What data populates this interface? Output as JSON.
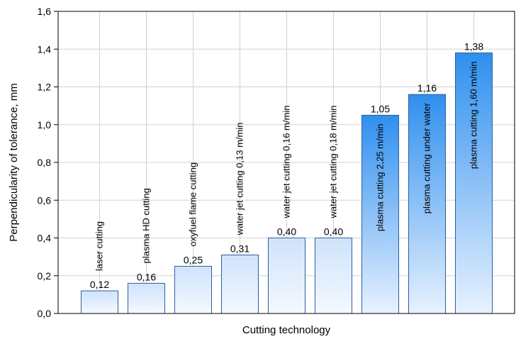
{
  "chart_data": {
    "type": "bar",
    "title": "",
    "xlabel": "Cutting technology",
    "ylabel": "Perpendicularity of tolerance, mm",
    "ylim": [
      0,
      1.6
    ],
    "yticks": [
      "0,0",
      "0,2",
      "0,4",
      "0,6",
      "0,8",
      "1,0",
      "1,2",
      "1,4",
      "1,6"
    ],
    "grid": true,
    "categories": [
      "laser cutting",
      "plasma HD cutting",
      "oxyfuel flame cutting",
      "water jet cutting 0,13 m/min",
      "water jet cutting 0,16 m/min",
      "water jet cutting 0,18 m/min",
      "plasma cutting 2,25 m/min",
      "plasma cutting under water",
      "plasma cutting 1,60 m/min"
    ],
    "values": [
      0.12,
      0.16,
      0.25,
      0.31,
      0.4,
      0.4,
      1.05,
      1.16,
      1.38
    ],
    "data_labels": [
      "0,12",
      "0,16",
      "0,25",
      "0,31",
      "0,40",
      "0,40",
      "1,05",
      "1,16",
      "1,38"
    ],
    "category_label_placement": [
      "above",
      "above",
      "above",
      "above",
      "above",
      "above",
      "inside",
      "inside",
      "inside"
    ],
    "colors": {
      "light_bar_top": "#cfe3fb",
      "light_bar_bottom": "#f4f9ff",
      "dark_bar_top": "#2f8fee",
      "dark_bar_bottom": "#e8f2ff",
      "bar_stroke": "#2c5fa0",
      "grid": "#d2d2d2"
    }
  }
}
